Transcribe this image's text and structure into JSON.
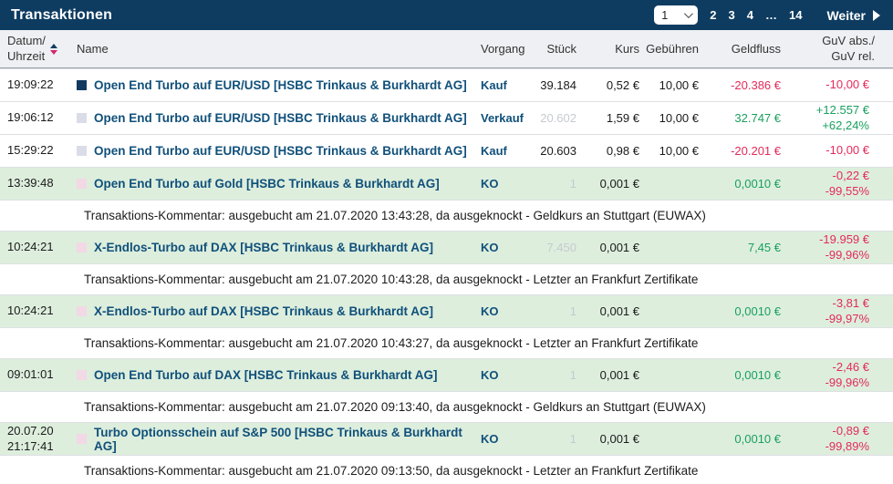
{
  "title": "Transaktionen",
  "pagination": {
    "current": "1",
    "pages": [
      "2",
      "3",
      "4",
      "…",
      "14"
    ],
    "next": "Weiter"
  },
  "header": {
    "datum1": "Datum/",
    "datum2": "Uhrzeit",
    "name": "Name",
    "vorgang": "Vorgang",
    "stueck": "Stück",
    "kurs": "Kurs",
    "gebuehren": "Gebühren",
    "geldfluss": "Geldfluss",
    "guv1": "GuV abs./",
    "guv2": "GuV rel."
  },
  "rows": [
    {
      "date": "",
      "time": "19:09:22",
      "name": "Open End Turbo auf EUR/USD [HSBC Trinkaus & Burkhardt AG]",
      "vorgang": "Kauf",
      "stueck": "39.184",
      "kurs": "0,52 €",
      "gebuehren": "10,00 €",
      "geldfluss": "-20.386 €",
      "guv_abs": "-10,00 €",
      "guv_rel": ""
    },
    {
      "date": "",
      "time": "19:06:12",
      "name": "Open End Turbo auf EUR/USD [HSBC Trinkaus & Burkhardt AG]",
      "vorgang": "Verkauf",
      "stueck": "20.602",
      "kurs": "1,59 €",
      "gebuehren": "10,00 €",
      "geldfluss": "32.747 €",
      "guv_abs": "+12.557 €",
      "guv_rel": "+62,24%"
    },
    {
      "date": "",
      "time": "15:29:22",
      "name": "Open End Turbo auf EUR/USD [HSBC Trinkaus & Burkhardt AG]",
      "vorgang": "Kauf",
      "stueck": "20.603",
      "kurs": "0,98 €",
      "gebuehren": "10,00 €",
      "geldfluss": "-20.201 €",
      "guv_abs": "-10,00 €",
      "guv_rel": ""
    },
    {
      "date": "",
      "time": "13:39:48",
      "name": "Open End Turbo auf Gold [HSBC Trinkaus & Burkhardt AG]",
      "vorgang": "KO",
      "stueck": "1",
      "kurs": "0,001 €",
      "gebuehren": "",
      "geldfluss": "0,0010 €",
      "guv_abs": "-0,22 €",
      "guv_rel": "-99,55%"
    },
    {
      "date": "",
      "time": "10:24:21",
      "name": "X-Endlos-Turbo auf DAX [HSBC Trinkaus & Burkhardt AG]",
      "vorgang": "KO",
      "stueck": "7.450",
      "kurs": "0,001 €",
      "gebuehren": "",
      "geldfluss": "7,45 €",
      "guv_abs": "-19.959 €",
      "guv_rel": "-99,96%"
    },
    {
      "date": "",
      "time": "10:24:21",
      "name": "X-Endlos-Turbo auf DAX [HSBC Trinkaus & Burkhardt AG]",
      "vorgang": "KO",
      "stueck": "1",
      "kurs": "0,001 €",
      "gebuehren": "",
      "geldfluss": "0,0010 €",
      "guv_abs": "-3,81 €",
      "guv_rel": "-99,97%"
    },
    {
      "date": "",
      "time": "09:01:01",
      "name": "Open End Turbo auf DAX [HSBC Trinkaus & Burkhardt AG]",
      "vorgang": "KO",
      "stueck": "1",
      "kurs": "0,001 €",
      "gebuehren": "",
      "geldfluss": "0,0010 €",
      "guv_abs": "-2,46 €",
      "guv_rel": "-99,96%"
    },
    {
      "date": "20.07.20",
      "time": "21:17:41",
      "name": "Turbo Optionsschein auf S&P 500 [HSBC Trinkaus & Burkhardt AG]",
      "vorgang": "KO",
      "stueck": "1",
      "kurs": "0,001 €",
      "gebuehren": "",
      "geldfluss": "0,0010 €",
      "guv_abs": "-0,89 €",
      "guv_rel": "-99,89%"
    }
  ],
  "comments": [
    "Transaktions-Kommentar: ausgebucht am 21.07.2020 13:43:28, da ausgeknockt - Geldkurs an Stuttgart (EUWAX)",
    "Transaktions-Kommentar: ausgebucht am 21.07.2020 10:43:28, da ausgeknockt - Letzter an Frankfurt Zertifikate",
    "Transaktions-Kommentar: ausgebucht am 21.07.2020 10:43:27, da ausgeknockt - Letzter an Frankfurt Zertifikate",
    "Transaktions-Kommentar: ausgebucht am 21.07.2020 09:13:40, da ausgeknockt - Geldkurs an Stuttgart (EUWAX)",
    "Transaktions-Kommentar: ausgebucht am 21.07.2020 09:13:50, da ausgeknockt - Letzter an Frankfurt Zertifikate"
  ],
  "colors": {
    "titlebar_bg": "#0e3c61",
    "column_header_bg": "#eef0f3",
    "highlight_row_bg": "#ddeedd",
    "name_link": "#10507a",
    "positive": "#19a05e",
    "negative": "#e42a5a",
    "muted_quantity": "#c6cad0",
    "icon_navy": "#123a5e",
    "icon_lavender": "#dadce7",
    "icon_pink": "#f3d8e5",
    "sort_arrow_down": "#d6246e"
  }
}
